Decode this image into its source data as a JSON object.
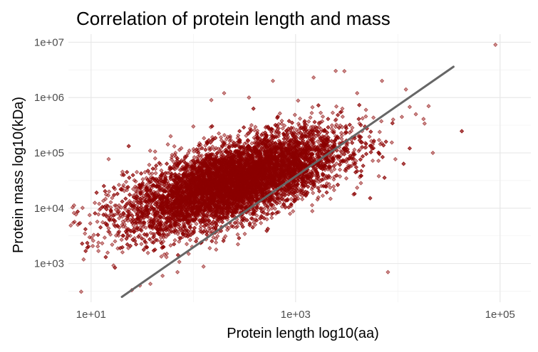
{
  "chart_data": {
    "type": "scatter",
    "title": "Correlation of protein length and mass",
    "xlabel": "Protein length log10(aa)",
    "ylabel": "Protein mass log10(kDa)",
    "x_scale": "log10",
    "y_scale": "log10",
    "xlim": [
      6,
      200000
    ],
    "ylim": [
      200,
      14000000
    ],
    "x_ticks": [
      10,
      1000,
      100000
    ],
    "x_tick_labels": [
      "1e+01",
      "1e+03",
      "1e+05"
    ],
    "y_ticks": [
      1000,
      10000,
      100000,
      1000000,
      10000000
    ],
    "y_tick_labels": [
      "1e+03",
      "1e+04",
      "1e+05",
      "1e+06",
      "1e+07"
    ],
    "grid": true,
    "point_color": "#8b0000",
    "trend_color": "#666666",
    "trend_line": {
      "x": [
        20,
        35000
      ],
      "y": [
        250,
        3600000
      ]
    },
    "cloud": {
      "x_center": 250,
      "y_center": 30000,
      "count": 9000
    },
    "points": [
      {
        "x": 8,
        "y": 310
      },
      {
        "x": 25,
        "y": 330
      },
      {
        "x": 30,
        "y": 400
      },
      {
        "x": 38,
        "y": 430
      },
      {
        "x": 40,
        "y": 4500
      },
      {
        "x": 35,
        "y": 2000
      },
      {
        "x": 50,
        "y": 600
      },
      {
        "x": 55,
        "y": 1500
      },
      {
        "x": 70,
        "y": 700
      },
      {
        "x": 90,
        "y": 1500
      },
      {
        "x": 12,
        "y": 12000
      },
      {
        "x": 15,
        "y": 20000
      },
      {
        "x": 18,
        "y": 8000
      },
      {
        "x": 22,
        "y": 30000
      },
      {
        "x": 28,
        "y": 45000
      },
      {
        "x": 60,
        "y": 200000
      },
      {
        "x": 100,
        "y": 300000
      },
      {
        "x": 150,
        "y": 900000
      },
      {
        "x": 200,
        "y": 1200000
      },
      {
        "x": 350,
        "y": 1000000
      },
      {
        "x": 600,
        "y": 2000000
      },
      {
        "x": 1500,
        "y": 2300000
      },
      {
        "x": 3000,
        "y": 3000000
      },
      {
        "x": 4000,
        "y": 1200000
      },
      {
        "x": 7000,
        "y": 2000000
      },
      {
        "x": 8000,
        "y": 700
      },
      {
        "x": 9000,
        "y": 400000
      },
      {
        "x": 12000,
        "y": 1400000
      },
      {
        "x": 15000,
        "y": 500000
      },
      {
        "x": 20000,
        "y": 700000
      },
      {
        "x": 22000,
        "y": 100000
      },
      {
        "x": 90000,
        "y": 9000000
      }
    ]
  }
}
